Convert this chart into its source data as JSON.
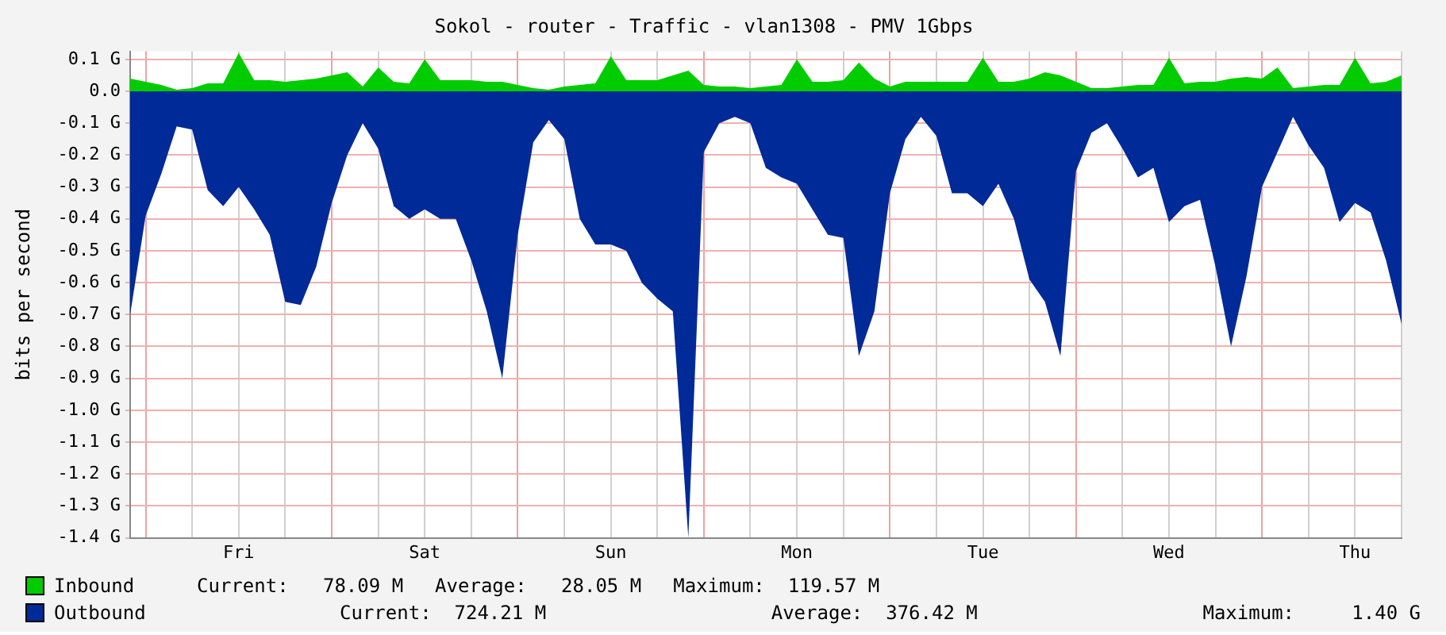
{
  "chart_data": {
    "type": "area",
    "title": "Sokol - router - Traffic - vlan1308 - PMV 1Gbps",
    "ylabel": "bits per second",
    "categories": [
      null,
      null,
      null,
      null,
      null,
      null,
      null,
      "Fri",
      null,
      null,
      null,
      null,
      null,
      null,
      null,
      null,
      null,
      null,
      null,
      "Sat",
      null,
      null,
      null,
      null,
      null,
      null,
      null,
      null,
      null,
      null,
      null,
      "Sun",
      null,
      null,
      null,
      null,
      null,
      null,
      null,
      null,
      null,
      null,
      null,
      "Mon",
      null,
      null,
      null,
      null,
      null,
      null,
      null,
      null,
      null,
      null,
      null,
      "Tue",
      null,
      null,
      null,
      null,
      null,
      null,
      null,
      null,
      null,
      null,
      null,
      "Wed",
      null,
      null,
      null,
      null,
      null,
      null,
      null,
      null,
      null,
      null,
      null,
      "Thu",
      null,
      null,
      null
    ],
    "ylim": [
      -1.4,
      0.125
    ],
    "yticks": [
      {
        "value": -1.4,
        "label": "-1.4 G"
      },
      {
        "value": -1.3,
        "label": "-1.3 G"
      },
      {
        "value": -1.2,
        "label": "-1.2 G"
      },
      {
        "value": -1.1,
        "label": "-1.1 G"
      },
      {
        "value": -1.0,
        "label": "-1.0 G"
      },
      {
        "value": -0.9,
        "label": "-0.9 G"
      },
      {
        "value": -0.8,
        "label": "-0.8 G"
      },
      {
        "value": -0.7,
        "label": "-0.7 G"
      },
      {
        "value": -0.6,
        "label": "-0.6 G"
      },
      {
        "value": -0.5,
        "label": "-0.5 G"
      },
      {
        "value": -0.4,
        "label": "-0.4 G"
      },
      {
        "value": -0.3,
        "label": "-0.3 G"
      },
      {
        "value": -0.2,
        "label": "-0.2 G"
      },
      {
        "value": -0.1,
        "label": "-0.1 G"
      },
      {
        "value": 0,
        "label": "0.0"
      },
      {
        "value": 0.1,
        "label": "0.1 G"
      }
    ],
    "grid": true,
    "legend": "bottom",
    "annotations": [
      "Current:   78.09 M",
      "Average:   28.05 M",
      "Maximum:  119.57 M",
      "Current:  724.21 M",
      "Average:  376.42 M",
      "Maximum:     1.40 G"
    ],
    "series": [
      {
        "name": "Inbound",
        "color": "#00cc00",
        "values": [
          0.04,
          0.03,
          0.02,
          0.005,
          0.01,
          0.025,
          0.025,
          0.12,
          0.035,
          0.035,
          0.03,
          0.035,
          0.04,
          0.05,
          0.06,
          0.015,
          0.075,
          0.03,
          0.025,
          0.1,
          0.035,
          0.035,
          0.035,
          0.03,
          0.03,
          0.02,
          0.01,
          0.005,
          0.015,
          0.02,
          0.025,
          0.11,
          0.035,
          0.035,
          0.035,
          0.05,
          0.065,
          0.02,
          0.015,
          0.015,
          0.01,
          0.015,
          0.02,
          0.1,
          0.03,
          0.03,
          0.035,
          0.09,
          0.04,
          0.015,
          0.03,
          0.03,
          0.03,
          0.03,
          0.03,
          0.105,
          0.03,
          0.03,
          0.04,
          0.06,
          0.05,
          0.03,
          0.01,
          0.01,
          0.015,
          0.02,
          0.02,
          0.105,
          0.025,
          0.03,
          0.03,
          0.04,
          0.045,
          0.04,
          0.075,
          0.01,
          0.015,
          0.02,
          0.02,
          0.105,
          0.025,
          0.03,
          0.05
        ]
      },
      {
        "name": "Outbound",
        "color": "#002a97",
        "values": [
          -0.7,
          -0.39,
          -0.26,
          -0.11,
          -0.12,
          -0.31,
          -0.36,
          -0.3,
          -0.37,
          -0.45,
          -0.66,
          -0.67,
          -0.55,
          -0.35,
          -0.2,
          -0.1,
          -0.18,
          -0.36,
          -0.4,
          -0.37,
          -0.4,
          -0.4,
          -0.53,
          -0.69,
          -0.9,
          -0.45,
          -0.16,
          -0.09,
          -0.15,
          -0.4,
          -0.48,
          -0.48,
          -0.5,
          -0.6,
          -0.65,
          -0.69,
          -1.4,
          -0.19,
          -0.1,
          -0.08,
          -0.1,
          -0.24,
          -0.27,
          -0.29,
          -0.37,
          -0.45,
          -0.46,
          -0.83,
          -0.69,
          -0.32,
          -0.15,
          -0.08,
          -0.14,
          -0.32,
          -0.32,
          -0.36,
          -0.29,
          -0.4,
          -0.59,
          -0.66,
          -0.83,
          -0.25,
          -0.13,
          -0.1,
          -0.18,
          -0.27,
          -0.24,
          -0.41,
          -0.36,
          -0.34,
          -0.55,
          -0.8,
          -0.58,
          -0.3,
          -0.19,
          -0.08,
          -0.17,
          -0.24,
          -0.41,
          -0.35,
          -0.38,
          -0.53,
          -0.73
        ]
      }
    ]
  }
}
